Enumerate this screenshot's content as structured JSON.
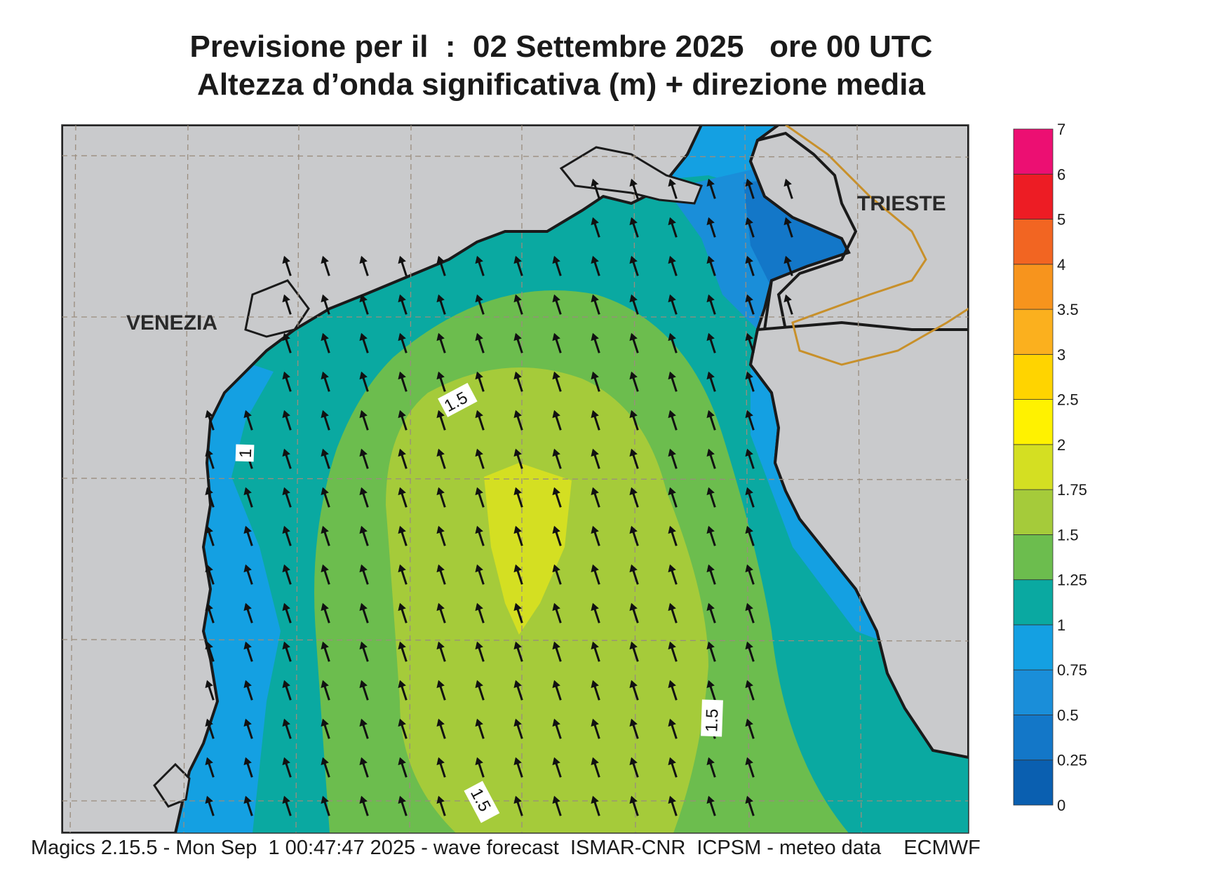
{
  "title": {
    "line1": "Previsione per il  :  02 Settembre 2025   ore 00 UTC",
    "line2": "Altezza d’onda significativa (m) + direzione media"
  },
  "footer": "Magics 2.15.5 - Mon Sep  1 00:47:47 2025 - wave forecast  ISMAR-CNR  ICPSM - meteo data    ECMWF",
  "cities": [
    {
      "name": "VENEZIA"
    },
    {
      "name": "TRIESTE"
    }
  ],
  "contour_labels": [
    "1.5",
    "1",
    "1.5",
    "1.5"
  ],
  "legend": {
    "levels": [
      "0",
      "0.25",
      "0.5",
      "0.75",
      "1",
      "1.25",
      "1.5",
      "1.75",
      "2",
      "2.5",
      "3",
      "3.5",
      "4",
      "5",
      "6",
      "7"
    ],
    "colors": [
      "#0a5fb0",
      "#1377c8",
      "#1a8ed9",
      "#14a0e2",
      "#0aa9a1",
      "#6cbd4e",
      "#a5cb3a",
      "#d4df22",
      "#fff200",
      "#ffd400",
      "#fbb01e",
      "#f7941d",
      "#f26522",
      "#ed1c24",
      "#ec0f72"
    ]
  },
  "colors": {
    "land": "#c9cacc",
    "border": "#c8902a"
  },
  "arrow_direction": "pointing north-north-west (toward upper-left)"
}
